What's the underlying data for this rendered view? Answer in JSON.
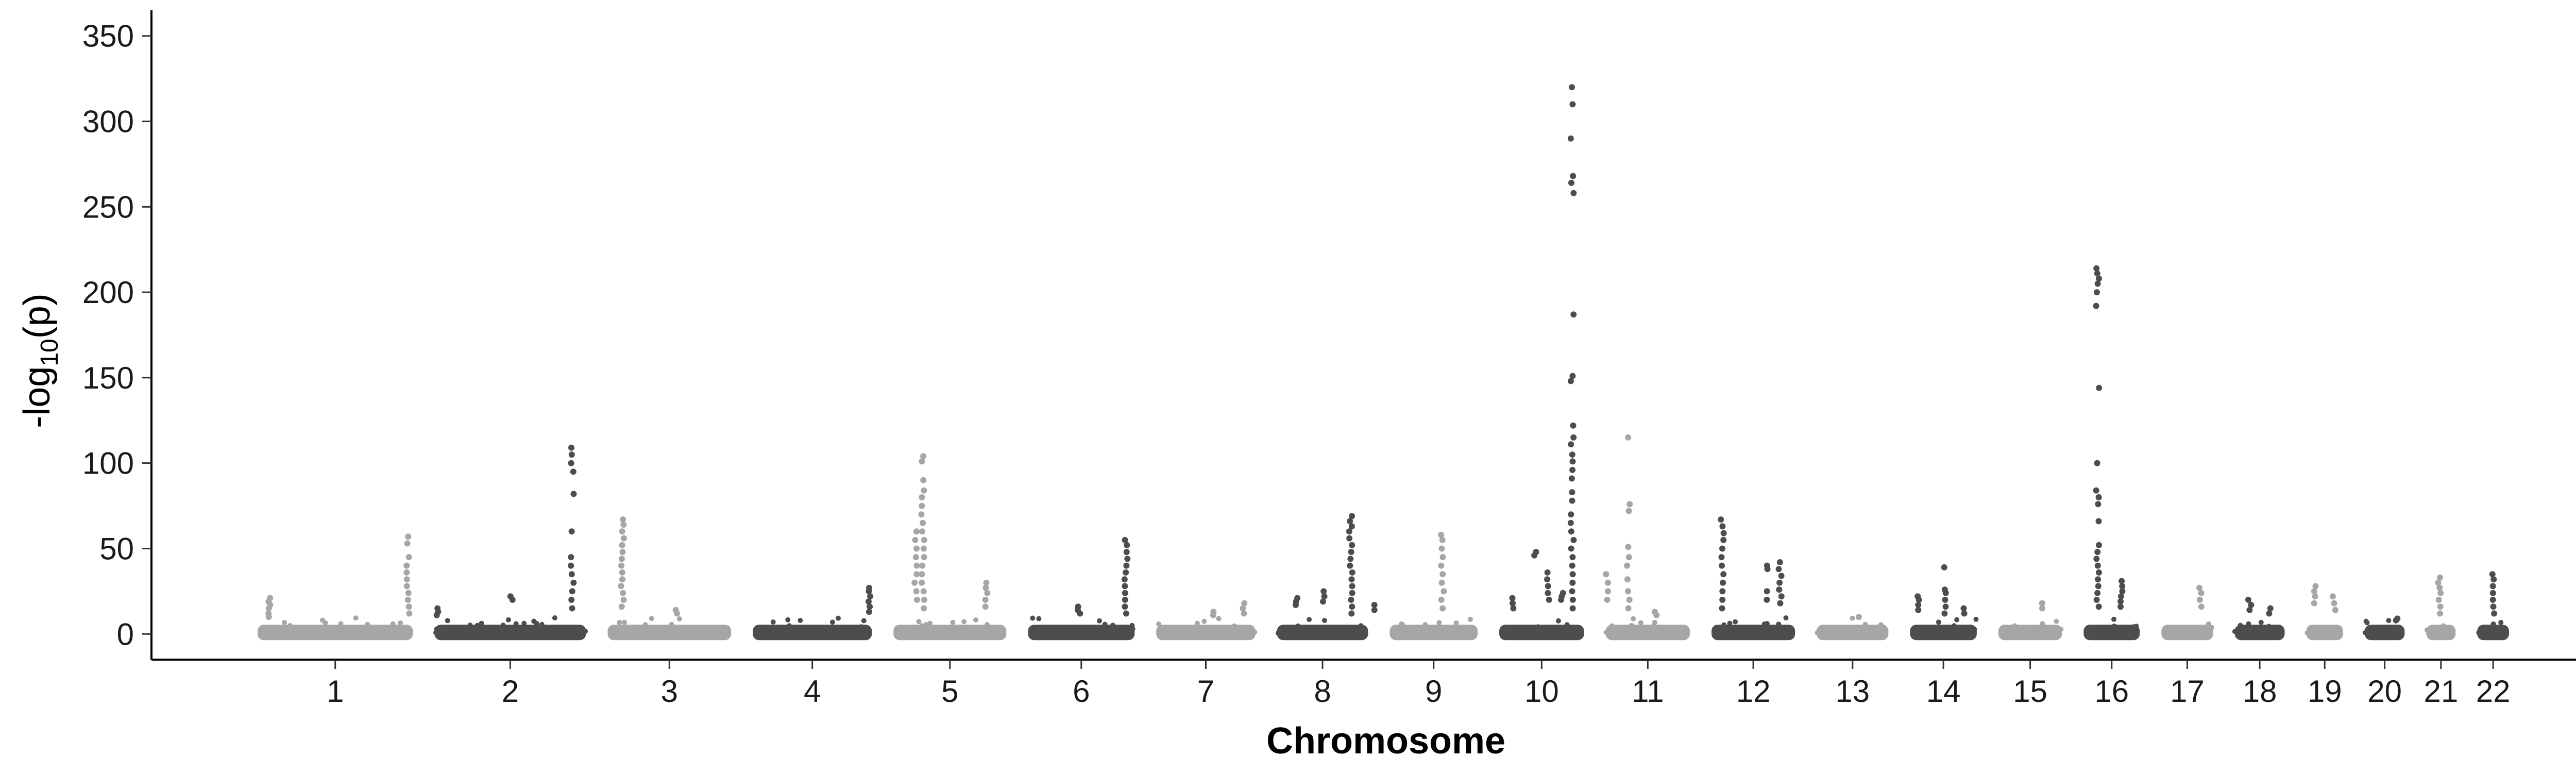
{
  "chart_data": {
    "type": "scatter",
    "xlabel": "Chromosome",
    "ylabel": "-log10(p)",
    "ylabel_parts": {
      "prefix": "-log",
      "subscript": "10",
      "suffix": "(p)"
    },
    "ylim": [
      -15,
      365
    ],
    "yticks": [
      0,
      50,
      100,
      150,
      200,
      250,
      300,
      350
    ],
    "grid": false,
    "legend": "none",
    "point_colors": {
      "light": "#a6a6a6",
      "dark": "#4d4d4d"
    },
    "chromosomes": [
      {
        "label": "1",
        "length": 249,
        "color": "light"
      },
      {
        "label": "2",
        "length": 243,
        "color": "dark"
      },
      {
        "label": "3",
        "length": 198,
        "color": "light"
      },
      {
        "label": "4",
        "length": 191,
        "color": "dark"
      },
      {
        "label": "5",
        "length": 181,
        "color": "light"
      },
      {
        "label": "6",
        "length": 171,
        "color": "dark"
      },
      {
        "label": "7",
        "length": 159,
        "color": "light"
      },
      {
        "label": "8",
        "length": 146,
        "color": "dark"
      },
      {
        "label": "9",
        "length": 141,
        "color": "light"
      },
      {
        "label": "10",
        "length": 136,
        "color": "dark"
      },
      {
        "label": "11",
        "length": 135,
        "color": "light"
      },
      {
        "label": "12",
        "length": 134,
        "color": "dark"
      },
      {
        "label": "13",
        "length": 115,
        "color": "light"
      },
      {
        "label": "14",
        "length": 107,
        "color": "dark"
      },
      {
        "label": "15",
        "length": 102,
        "color": "light"
      },
      {
        "label": "16",
        "length": 90,
        "color": "dark"
      },
      {
        "label": "17",
        "length": 83,
        "color": "light"
      },
      {
        "label": "18",
        "length": 80,
        "color": "dark"
      },
      {
        "label": "19",
        "length": 59,
        "color": "light"
      },
      {
        "label": "20",
        "length": 64,
        "color": "dark"
      },
      {
        "label": "21",
        "length": 47,
        "color": "light"
      },
      {
        "label": "22",
        "length": 51,
        "color": "dark"
      }
    ],
    "peaks": [
      {
        "chr": "1",
        "pos": 0.08,
        "values": [
          21,
          19,
          17,
          15,
          12,
          10
        ]
      },
      {
        "chr": "1",
        "pos": 0.97,
        "values": [
          57,
          53,
          45,
          40,
          36,
          32,
          28,
          24,
          20,
          16,
          12
        ]
      },
      {
        "chr": "2",
        "pos": 0.02,
        "values": [
          15,
          13,
          11
        ]
      },
      {
        "chr": "2",
        "pos": 0.51,
        "values": [
          22,
          20
        ]
      },
      {
        "chr": "2",
        "pos": 0.91,
        "values": [
          109,
          105,
          100,
          95,
          82,
          60,
          45,
          40,
          35,
          30,
          25,
          20,
          15
        ]
      },
      {
        "chr": "3",
        "pos": 0.12,
        "values": [
          67,
          64,
          60,
          56,
          52,
          48,
          44,
          40,
          36,
          32,
          28,
          24,
          20,
          16
        ]
      },
      {
        "chr": "3",
        "pos": 0.55,
        "values": [
          14,
          12
        ]
      },
      {
        "chr": "4",
        "pos": 0.98,
        "values": [
          27,
          25,
          22,
          19,
          16,
          13
        ]
      },
      {
        "chr": "5",
        "pos": 0.26,
        "values": [
          104,
          101,
          90,
          84,
          80,
          75,
          70,
          65,
          60,
          55,
          50,
          45,
          40,
          35,
          30,
          25,
          20,
          15
        ]
      },
      {
        "chr": "5",
        "pos": 0.2,
        "values": [
          60,
          55,
          50,
          45,
          40,
          35,
          30,
          25,
          20
        ]
      },
      {
        "chr": "5",
        "pos": 0.82,
        "values": [
          30,
          27,
          24,
          20,
          16
        ]
      },
      {
        "chr": "6",
        "pos": 0.48,
        "values": [
          16,
          14,
          12
        ]
      },
      {
        "chr": "6",
        "pos": 0.92,
        "values": [
          55,
          52,
          48,
          44,
          40,
          36,
          32,
          28,
          24,
          20,
          16,
          12
        ]
      },
      {
        "chr": "7",
        "pos": 0.58,
        "values": [
          13,
          11
        ]
      },
      {
        "chr": "7",
        "pos": 0.88,
        "values": [
          18,
          15,
          12
        ]
      },
      {
        "chr": "8",
        "pos": 0.22,
        "values": [
          21,
          19,
          17
        ]
      },
      {
        "chr": "8",
        "pos": 0.52,
        "values": [
          25,
          22,
          19
        ]
      },
      {
        "chr": "8",
        "pos": 0.81,
        "values": [
          69,
          66,
          63,
          60,
          56,
          52,
          48,
          44,
          40,
          36,
          32,
          28,
          24,
          20,
          16,
          12
        ]
      },
      {
        "chr": "8",
        "pos": 1.06,
        "values": [
          17,
          14
        ]
      },
      {
        "chr": "9",
        "pos": 0.6,
        "values": [
          58,
          55,
          50,
          45,
          40,
          35,
          30,
          25,
          20,
          15
        ]
      },
      {
        "chr": "10",
        "pos": 0.15,
        "values": [
          21,
          18,
          15
        ]
      },
      {
        "chr": "10",
        "pos": 0.42,
        "values": [
          48,
          46
        ]
      },
      {
        "chr": "10",
        "pos": 0.57,
        "values": [
          36,
          32,
          28,
          24,
          20
        ]
      },
      {
        "chr": "10",
        "pos": 0.74,
        "values": [
          24,
          22,
          20
        ]
      },
      {
        "chr": "10",
        "pos": 0.86,
        "values": [
          320,
          310,
          290,
          268,
          264,
          258,
          187,
          151,
          148,
          122,
          115,
          111,
          105,
          101,
          96,
          91,
          83,
          78,
          70,
          65,
          60,
          55,
          50,
          45,
          40,
          35,
          30,
          25,
          20,
          15
        ]
      },
      {
        "chr": "11",
        "pos": 0.02,
        "values": [
          35,
          30,
          25,
          20
        ]
      },
      {
        "chr": "11",
        "pos": 0.27,
        "values": [
          115,
          76,
          72,
          51,
          45,
          40,
          32,
          25,
          20,
          15
        ]
      },
      {
        "chr": "11",
        "pos": 0.6,
        "values": [
          13,
          11
        ]
      },
      {
        "chr": "12",
        "pos": 0.13,
        "values": [
          67,
          63,
          59,
          55,
          50,
          45,
          40,
          35,
          30,
          25,
          20,
          15
        ]
      },
      {
        "chr": "12",
        "pos": 0.66,
        "values": [
          40,
          38,
          25,
          20
        ]
      },
      {
        "chr": "12",
        "pos": 0.82,
        "values": [
          42,
          38,
          34,
          30,
          26,
          22,
          18
        ]
      },
      {
        "chr": "13",
        "pos": 0.6,
        "values": [
          10
        ]
      },
      {
        "chr": "14",
        "pos": 0.12,
        "values": [
          22,
          20,
          17,
          14
        ]
      },
      {
        "chr": "14",
        "pos": 0.52,
        "values": [
          39,
          26,
          24,
          20,
          16,
          12
        ]
      },
      {
        "chr": "14",
        "pos": 0.8,
        "values": [
          15,
          12
        ]
      },
      {
        "chr": "15",
        "pos": 0.7,
        "values": [
          18,
          15
        ]
      },
      {
        "chr": "16",
        "pos": 0.25,
        "values": [
          214,
          211,
          208,
          205,
          200,
          192,
          144,
          100,
          84,
          80,
          76,
          66,
          52,
          48,
          44,
          40,
          36,
          32,
          28,
          24,
          20,
          16
        ]
      },
      {
        "chr": "16",
        "pos": 0.68,
        "values": [
          31,
          28,
          25,
          22,
          19,
          16
        ]
      },
      {
        "chr": "17",
        "pos": 0.75,
        "values": [
          27,
          24,
          20,
          16
        ]
      },
      {
        "chr": "18",
        "pos": 0.3,
        "values": [
          20,
          17,
          14
        ]
      },
      {
        "chr": "18",
        "pos": 0.72,
        "values": [
          15,
          12
        ]
      },
      {
        "chr": "19",
        "pos": 0.25,
        "values": [
          28,
          25,
          22,
          18
        ]
      },
      {
        "chr": "19",
        "pos": 0.75,
        "values": [
          22,
          18,
          14
        ]
      },
      {
        "chr": "20",
        "pos": 0.8,
        "values": [
          9,
          8
        ]
      },
      {
        "chr": "21",
        "pos": 0.45,
        "values": [
          33,
          30,
          27,
          24,
          20,
          16,
          12
        ]
      },
      {
        "chr": "22",
        "pos": 0.52,
        "values": [
          35,
          32,
          28,
          24,
          20,
          16,
          12
        ]
      }
    ]
  }
}
